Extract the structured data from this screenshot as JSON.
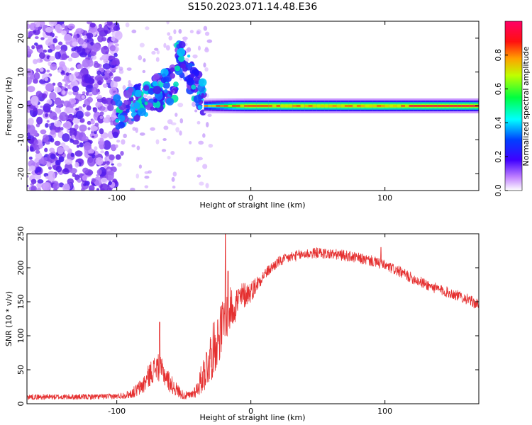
{
  "figure": {
    "title": "S150.2023.071.14.48.E36"
  },
  "colors": {
    "snr_line": "#e53030",
    "axis": "#000000",
    "background": "#ffffff"
  },
  "chart_data": [
    {
      "type": "heatmap",
      "xlabel": "Height of straight line (km)",
      "ylabel": "Frequency (Hz)",
      "xlim": [
        -167,
        170
      ],
      "ylim": [
        -25,
        25
      ],
      "xticks": [
        -100,
        0,
        100
      ],
      "yticks": [
        -20,
        -10,
        0,
        10,
        20
      ],
      "tick_labels_x": [
        "-100",
        "0",
        "100"
      ],
      "tick_labels_y": [
        "-20",
        "-10",
        "0",
        "10",
        "20"
      ],
      "colorbar": {
        "label": "Normalized spectral amplitude",
        "range": [
          0,
          1
        ],
        "ticks": [
          0.0,
          0.2,
          0.4,
          0.6,
          0.8
        ],
        "tick_labels": [
          "0.0",
          "0.2",
          "0.4",
          "0.6",
          "0.8"
        ],
        "colormap": [
          "#ffffff",
          "#8a2be2",
          "#0000ff",
          "#00ffff",
          "#00ff00",
          "#ffff00",
          "#ff0000",
          "#ff0066"
        ]
      },
      "regions": [
        {
          "name": "noise",
          "x_range": [
            -167,
            -100
          ],
          "f_range": [
            -25,
            25
          ],
          "amplitude": 0.15
        },
        {
          "name": "transition",
          "x_range": [
            -100,
            -35
          ],
          "f_range": [
            -5,
            16
          ],
          "amplitude": 0.3
        },
        {
          "name": "echo",
          "x_range": [
            -35,
            170
          ],
          "f_range": [
            -1.5,
            1.5
          ],
          "amplitude": 0.8
        }
      ]
    },
    {
      "type": "line",
      "xlabel": "Height of straight line (km)",
      "ylabel": "SNR (10 * v/v)",
      "xlim": [
        -167,
        170
      ],
      "ylim": [
        0,
        250
      ],
      "xticks": [
        -100,
        0,
        100
      ],
      "yticks": [
        0,
        50,
        100,
        150,
        200,
        250
      ],
      "tick_labels_x": [
        "-100",
        "0",
        "100"
      ],
      "tick_labels_y": [
        "0",
        "50",
        "100",
        "150",
        "200",
        "250"
      ],
      "series": [
        {
          "name": "SNR",
          "x": [
            -167,
            -150,
            -125,
            -100,
            -90,
            -85,
            -80,
            -75,
            -70,
            -65,
            -60,
            -55,
            -50,
            -45,
            -40,
            -35,
            -30,
            -25,
            -20,
            -15,
            -10,
            -5,
            0,
            10,
            20,
            30,
            40,
            50,
            60,
            70,
            80,
            90,
            100,
            110,
            120,
            130,
            140,
            150,
            160,
            170
          ],
          "values": [
            10,
            10,
            10,
            11,
            14,
            20,
            28,
            45,
            55,
            45,
            30,
            20,
            12,
            12,
            22,
            45,
            70,
            95,
            120,
            140,
            150,
            160,
            165,
            190,
            208,
            216,
            220,
            222,
            220,
            218,
            214,
            210,
            203,
            195,
            185,
            176,
            168,
            162,
            155,
            145
          ],
          "noise": [
            4,
            4,
            4,
            4,
            6,
            10,
            14,
            18,
            20,
            18,
            14,
            10,
            6,
            6,
            12,
            28,
            40,
            40,
            40,
            32,
            26,
            20,
            16,
            8,
            8,
            8,
            8,
            8,
            8,
            8,
            8,
            8,
            8,
            8,
            8,
            8,
            8,
            8,
            8,
            8
          ],
          "spikes": [
            {
              "x": -68,
              "y": 120
            },
            {
              "x": -19,
              "y": 250
            },
            {
              "x": -17,
              "y": 195
            },
            {
              "x": 97,
              "y": 230
            }
          ]
        }
      ]
    }
  ]
}
